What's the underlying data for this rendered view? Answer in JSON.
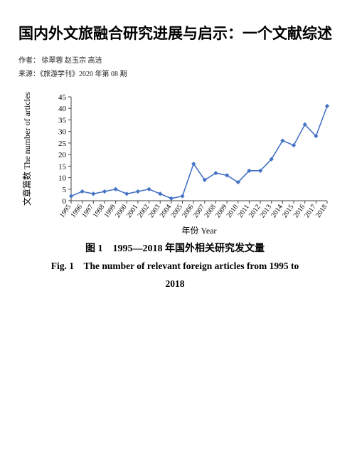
{
  "title": "国内外文旅融合研究进展与启示：一个文献综述",
  "authors_line": "作者： 徐翠蓉 赵玉宗 高洁",
  "source_line": "来源：《旅游学刊》2020 年第 08 期",
  "chart": {
    "type": "line",
    "x_axis_label": "年份 Year",
    "y_axis_label_cn": "文章篇数",
    "y_axis_label_en": "The number of articles",
    "ylim": [
      0,
      45
    ],
    "ytick_step": 5,
    "yticks": [
      0,
      5,
      10,
      15,
      20,
      25,
      30,
      35,
      40,
      45
    ],
    "x_categories": [
      1995,
      1996,
      1997,
      1998,
      1999,
      2000,
      2001,
      2002,
      2003,
      2004,
      2005,
      2006,
      2007,
      2008,
      2009,
      2010,
      2011,
      2012,
      2013,
      2014,
      2015,
      2016,
      2017,
      2018
    ],
    "values": [
      2,
      4,
      3,
      4,
      5,
      3,
      4,
      5,
      3,
      1,
      2,
      16,
      9,
      12,
      11,
      8,
      13,
      13,
      18,
      26,
      24,
      33,
      28,
      41
    ],
    "line_color": "#4472c4",
    "marker_color": "#4472c4",
    "marker": "diamond",
    "marker_size": 5,
    "line_width": 1.6,
    "background_color": "#ffffff",
    "axis_color": "#444444",
    "tick_font_size": 11,
    "label_font_size": 12
  },
  "caption_cn": "图 1　1995—2018 年国外相关研究发文量",
  "caption_en_l1": "Fig. 1　The number of relevant foreign articles from 1995 to",
  "caption_en_l2": "2018"
}
